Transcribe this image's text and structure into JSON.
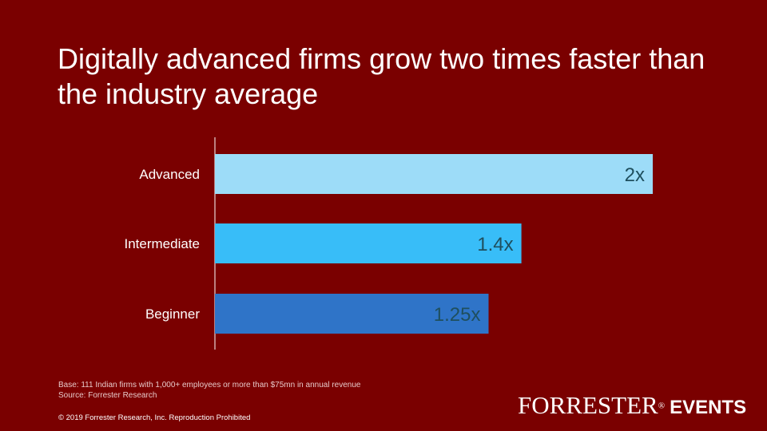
{
  "title": "Digitally advanced firms grow two times faster than the industry average",
  "chart_data": {
    "type": "bar",
    "orientation": "horizontal",
    "categories": [
      "Advanced",
      "Intermediate",
      "Beginner"
    ],
    "values": [
      2,
      1.4,
      1.25
    ],
    "data_labels": [
      "2x",
      "1.4x",
      "1.25x"
    ],
    "bar_colors": [
      "#9ddcf8",
      "#38bdf8",
      "#2f74c8"
    ],
    "label_color": "#1f4f5e",
    "xlim": [
      0,
      2.2
    ],
    "grid": false,
    "legend": "none",
    "xlabel": "",
    "ylabel": ""
  },
  "footnotes": {
    "base": "Base: 111 Indian  firms with 1,000+ employees or more than $75mn in annual revenue",
    "source": "Source: Forrester Research"
  },
  "copyright": "© 2019 Forrester Research, Inc. Reproduction Prohibited",
  "brand": {
    "name": "FORRESTER",
    "reg": "®",
    "events": "EVENTS"
  },
  "colors": {
    "background": "#7a0000",
    "text": "#ffffff"
  }
}
